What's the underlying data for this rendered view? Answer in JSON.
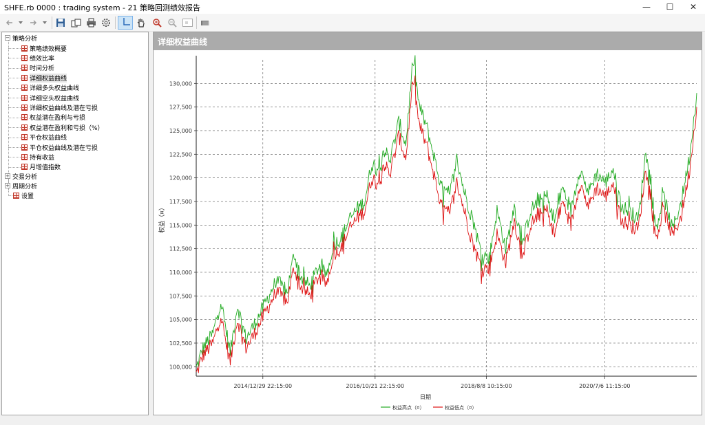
{
  "window": {
    "title": "SHFE.rb 0000 : trading system - 21 策略回测绩效报告",
    "minimize": "—",
    "maximize": "☐",
    "close": "✕"
  },
  "toolbar": {
    "icons": [
      "back-icon",
      "back-dropdown-icon",
      "forward-icon",
      "forward-dropdown-icon",
      "save-icon",
      "copy-icon",
      "print-icon",
      "settings-icon",
      "crosshair-icon",
      "hand-pan-icon",
      "zoom-in-icon",
      "zoom-out-icon",
      "zoom-reset-icon",
      "export-icon"
    ]
  },
  "tree": {
    "root": "策略分析",
    "items": [
      {
        "label": "策略绩效概要"
      },
      {
        "label": "绩效比率"
      },
      {
        "label": "时间分析"
      },
      {
        "label": "详细权益曲线",
        "selected": true
      },
      {
        "label": "详细多头权益曲线"
      },
      {
        "label": "详细空头权益曲线"
      },
      {
        "label": "详细权益曲线及潜在亏损"
      },
      {
        "label": "权益潜在盈利与亏损"
      },
      {
        "label": "权益潜在盈利和亏损（%）"
      },
      {
        "label": "平仓权益曲线"
      },
      {
        "label": "平仓权益曲线及潜在亏损"
      },
      {
        "label": "持有收益"
      },
      {
        "label": "月增值指数"
      }
    ],
    "groups": [
      "交易分析",
      "周期分析"
    ],
    "settings": "设置"
  },
  "panel": {
    "title": "详细权益曲线"
  },
  "chart_data": {
    "type": "line",
    "title": "",
    "xlabel": "日期",
    "ylabel": "权益（¤）",
    "ylim": [
      99000,
      132500
    ],
    "yticks": [
      100000,
      102500,
      105000,
      107500,
      110000,
      112500,
      115000,
      117500,
      120000,
      122500,
      125000,
      127500,
      130000
    ],
    "ytick_labels": [
      "100,000",
      "102,500",
      "105,000",
      "107,500",
      "110,000",
      "112,500",
      "115,000",
      "117,500",
      "120,000",
      "122,500",
      "125,000",
      "127,500",
      "130,000"
    ],
    "xlim": [
      "2013-12-01",
      "2021-12-31"
    ],
    "xticks": [
      "2014-12-29",
      "2016-10-21",
      "2018-08-08",
      "2020-07-06"
    ],
    "xtick_labels": [
      "2014/12/29 22:15:00",
      "2016/10/21 22:15:00",
      "2018/8/8 10:15:00",
      "2020/7/6 11:15:00"
    ],
    "grid": true,
    "legend_placement": "bottom-center",
    "series": [
      {
        "name": "权益高点（¤）",
        "color": "#22aa22",
        "x": [
          "2013-12-01",
          "2014-01-10",
          "2014-03-10",
          "2014-04-25",
          "2014-05-20",
          "2014-06-20",
          "2014-08-01",
          "2014-09-20",
          "2014-11-10",
          "2015-01-20",
          "2015-03-20",
          "2015-05-20",
          "2015-07-01",
          "2015-08-10",
          "2015-10-01",
          "2015-11-20",
          "2016-01-10",
          "2016-02-20",
          "2016-04-01",
          "2016-05-20",
          "2016-07-10",
          "2016-08-20",
          "2016-10-01",
          "2016-11-10",
          "2016-12-10",
          "2017-01-20",
          "2017-03-10",
          "2017-04-20",
          "2017-06-01",
          "2017-07-10",
          "2017-08-20",
          "2017-10-01",
          "2017-11-15",
          "2018-01-01",
          "2018-02-15",
          "2018-04-01",
          "2018-05-20",
          "2018-07-10",
          "2018-08-25",
          "2018-10-10",
          "2018-12-01",
          "2019-01-20",
          "2019-03-10",
          "2019-04-25",
          "2019-06-10",
          "2019-08-01",
          "2019-09-15",
          "2019-11-01",
          "2019-12-20",
          "2020-02-10",
          "2020-04-01",
          "2020-05-20",
          "2020-07-10",
          "2020-08-25",
          "2020-10-10",
          "2020-12-01",
          "2021-01-20",
          "2021-03-10",
          "2021-05-01",
          "2021-06-20",
          "2021-08-10",
          "2021-10-01",
          "2021-11-20",
          "2021-12-31"
        ],
        "values": [
          99800,
          102000,
          103500,
          107000,
          104500,
          101500,
          106500,
          103000,
          104500,
          107000,
          109200,
          107800,
          112000,
          109500,
          108500,
          110500,
          109800,
          113000,
          113500,
          115500,
          116800,
          117500,
          121500,
          121000,
          123000,
          122000,
          126000,
          123500,
          132500,
          127500,
          125500,
          122500,
          119000,
          118000,
          122000,
          118500,
          115500,
          112000,
          111500,
          116500,
          112500,
          117000,
          113000,
          116500,
          117500,
          118000,
          115500,
          119000,
          116500,
          121000,
          118500,
          120500,
          119500,
          121000,
          117000,
          116500,
          115500,
          123500,
          114500,
          118000,
          114500,
          117500,
          122500,
          129000
        ]
      },
      {
        "name": "权益低点（¤）",
        "color": "#dd1111",
        "x": [
          "2013-12-01",
          "2014-01-10",
          "2014-03-10",
          "2014-04-25",
          "2014-05-20",
          "2014-06-20",
          "2014-08-01",
          "2014-09-20",
          "2014-11-10",
          "2015-01-20",
          "2015-03-20",
          "2015-05-20",
          "2015-07-01",
          "2015-08-10",
          "2015-10-01",
          "2015-11-20",
          "2016-01-10",
          "2016-02-20",
          "2016-04-01",
          "2016-05-20",
          "2016-07-10",
          "2016-08-20",
          "2016-10-01",
          "2016-11-10",
          "2016-12-10",
          "2017-01-20",
          "2017-03-10",
          "2017-04-20",
          "2017-06-01",
          "2017-07-10",
          "2017-08-20",
          "2017-10-01",
          "2017-11-15",
          "2018-01-01",
          "2018-02-15",
          "2018-04-01",
          "2018-05-20",
          "2018-07-10",
          "2018-08-25",
          "2018-10-10",
          "2018-12-01",
          "2019-01-20",
          "2019-03-10",
          "2019-04-25",
          "2019-06-10",
          "2019-08-01",
          "2019-09-15",
          "2019-11-01",
          "2019-12-20",
          "2020-02-10",
          "2020-04-01",
          "2020-05-20",
          "2020-07-10",
          "2020-08-25",
          "2020-10-10",
          "2020-12-01",
          "2021-01-20",
          "2021-03-10",
          "2021-05-01",
          "2021-06-20",
          "2021-08-10",
          "2021-10-01",
          "2021-11-20",
          "2021-12-31"
        ],
        "values": [
          99200,
          101200,
          102500,
          105500,
          103000,
          100500,
          105000,
          102000,
          103500,
          106000,
          108000,
          106800,
          110500,
          108500,
          107500,
          109500,
          108800,
          112000,
          112500,
          114500,
          115800,
          116500,
          120000,
          119500,
          121500,
          120500,
          124500,
          122000,
          130500,
          125500,
          123500,
          120500,
          117000,
          116000,
          119500,
          116500,
          113000,
          110500,
          110500,
          114000,
          111000,
          115500,
          111500,
          115000,
          116000,
          116500,
          114000,
          117500,
          115000,
          119500,
          117000,
          119000,
          118000,
          119500,
          115500,
          115000,
          114500,
          121500,
          113500,
          116500,
          113800,
          116000,
          121000,
          127500
        ]
      }
    ]
  }
}
